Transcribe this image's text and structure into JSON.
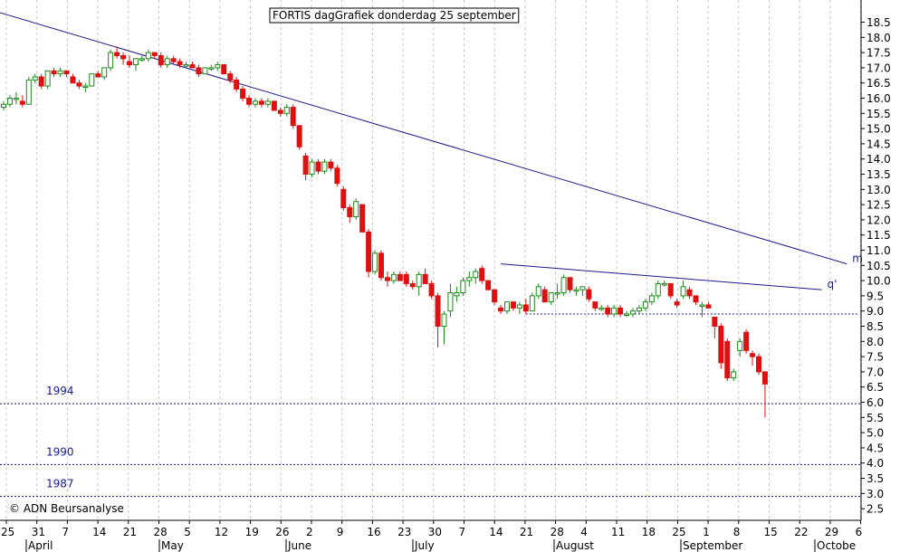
{
  "colors": {
    "grid": "#c8c8c8",
    "axis": "#000000",
    "up_candle": "#1a8a1a",
    "down_candle": "#dd1111",
    "trendline": "#1a1a8a",
    "annotation": "#1a1a9a"
  },
  "chart_data": {
    "type": "candlestick",
    "title": "FORTIS dagGrafiek donderdag 25 september",
    "copyright": "© ADN Beursanalyse",
    "y_axis": {
      "position": "right",
      "ylim": [
        2.0,
        18.7
      ],
      "ticks": [
        "2.5",
        "3.0",
        "3.5",
        "4.0",
        "4.5",
        "5.0",
        "5.5",
        "6.0",
        "6.5",
        "7.0",
        "7.5",
        "8.0",
        "8.5",
        "9.0",
        "9.5",
        "10.0",
        "10.5",
        "11.0",
        "11.5",
        "12.0",
        "12.5",
        "13.0",
        "13.5",
        "14.0",
        "14.5",
        "15.0",
        "15.5",
        "16.0",
        "16.5",
        "17.0",
        "17.5",
        "18.0",
        "18.5"
      ]
    },
    "x_axis": {
      "day_labels": [
        "25",
        "31",
        "7",
        "14",
        "21",
        "28",
        "5",
        "12",
        "19",
        "26",
        "2",
        "9",
        "16",
        "23",
        "30",
        "7",
        "14",
        "21",
        "28",
        "4",
        "11",
        "18",
        "25",
        "1",
        "8",
        "15",
        "22",
        "29",
        "6"
      ],
      "month_labels": [
        "April",
        "May",
        "June",
        "July",
        "August",
        "September",
        "Octobe"
      ],
      "grid": "vertical dashed"
    },
    "candles": [
      {
        "o": 15.7,
        "h": 15.9,
        "l": 15.6,
        "c": 15.8
      },
      {
        "o": 15.8,
        "h": 16.1,
        "l": 15.7,
        "c": 16.0
      },
      {
        "o": 16.0,
        "h": 16.2,
        "l": 15.8,
        "c": 16.0
      },
      {
        "o": 15.9,
        "h": 16.1,
        "l": 15.7,
        "c": 15.8
      },
      {
        "o": 15.8,
        "h": 16.7,
        "l": 15.8,
        "c": 16.6
      },
      {
        "o": 16.6,
        "h": 16.8,
        "l": 16.5,
        "c": 16.7
      },
      {
        "o": 16.7,
        "h": 16.8,
        "l": 16.3,
        "c": 16.4
      },
      {
        "o": 16.4,
        "h": 16.9,
        "l": 16.3,
        "c": 16.9
      },
      {
        "o": 16.9,
        "h": 17.0,
        "l": 16.7,
        "c": 16.8
      },
      {
        "o": 16.8,
        "h": 17.0,
        "l": 16.7,
        "c": 16.9
      },
      {
        "o": 16.9,
        "h": 16.9,
        "l": 16.7,
        "c": 16.8
      },
      {
        "o": 16.7,
        "h": 16.8,
        "l": 16.5,
        "c": 16.5
      },
      {
        "o": 16.5,
        "h": 16.6,
        "l": 16.3,
        "c": 16.4
      },
      {
        "o": 16.4,
        "h": 16.5,
        "l": 16.2,
        "c": 16.4
      },
      {
        "o": 16.4,
        "h": 16.8,
        "l": 16.4,
        "c": 16.8
      },
      {
        "o": 16.8,
        "h": 16.9,
        "l": 16.7,
        "c": 16.7
      },
      {
        "o": 16.7,
        "h": 17.0,
        "l": 16.6,
        "c": 17.0
      },
      {
        "o": 17.0,
        "h": 17.6,
        "l": 16.9,
        "c": 17.5
      },
      {
        "o": 17.5,
        "h": 17.7,
        "l": 17.3,
        "c": 17.4
      },
      {
        "o": 17.4,
        "h": 17.5,
        "l": 17.1,
        "c": 17.3
      },
      {
        "o": 17.2,
        "h": 17.4,
        "l": 17.0,
        "c": 17.1
      },
      {
        "o": 17.1,
        "h": 17.3,
        "l": 16.9,
        "c": 17.3
      },
      {
        "o": 17.3,
        "h": 17.4,
        "l": 17.2,
        "c": 17.3
      },
      {
        "o": 17.3,
        "h": 17.6,
        "l": 17.2,
        "c": 17.5
      },
      {
        "o": 17.5,
        "h": 17.5,
        "l": 17.3,
        "c": 17.4
      },
      {
        "o": 17.4,
        "h": 17.5,
        "l": 17.0,
        "c": 17.1
      },
      {
        "o": 17.1,
        "h": 17.4,
        "l": 17.0,
        "c": 17.3
      },
      {
        "o": 17.3,
        "h": 17.4,
        "l": 17.1,
        "c": 17.2
      },
      {
        "o": 17.2,
        "h": 17.3,
        "l": 17.0,
        "c": 17.1
      },
      {
        "o": 17.1,
        "h": 17.2,
        "l": 17.0,
        "c": 17.1
      },
      {
        "o": 17.1,
        "h": 17.2,
        "l": 17.0,
        "c": 17.0
      },
      {
        "o": 17.0,
        "h": 17.1,
        "l": 16.7,
        "c": 16.8
      },
      {
        "o": 16.8,
        "h": 17.0,
        "l": 16.8,
        "c": 17.0
      },
      {
        "o": 17.0,
        "h": 17.1,
        "l": 16.9,
        "c": 17.0
      },
      {
        "o": 17.0,
        "h": 17.2,
        "l": 16.9,
        "c": 17.1
      },
      {
        "o": 17.1,
        "h": 17.1,
        "l": 16.8,
        "c": 16.8
      },
      {
        "o": 16.8,
        "h": 16.9,
        "l": 16.5,
        "c": 16.6
      },
      {
        "o": 16.6,
        "h": 16.7,
        "l": 16.2,
        "c": 16.3
      },
      {
        "o": 16.3,
        "h": 16.4,
        "l": 15.9,
        "c": 16.0
      },
      {
        "o": 16.0,
        "h": 16.1,
        "l": 15.7,
        "c": 15.8
      },
      {
        "o": 15.8,
        "h": 16.0,
        "l": 15.7,
        "c": 15.9
      },
      {
        "o": 15.9,
        "h": 16.0,
        "l": 15.7,
        "c": 15.8
      },
      {
        "o": 15.8,
        "h": 16.0,
        "l": 15.7,
        "c": 15.9
      },
      {
        "o": 15.9,
        "h": 15.9,
        "l": 15.6,
        "c": 15.6
      },
      {
        "o": 15.6,
        "h": 15.7,
        "l": 15.4,
        "c": 15.5
      },
      {
        "o": 15.5,
        "h": 15.8,
        "l": 15.4,
        "c": 15.7
      },
      {
        "o": 15.7,
        "h": 15.8,
        "l": 15.0,
        "c": 15.1
      },
      {
        "o": 15.1,
        "h": 15.1,
        "l": 14.3,
        "c": 14.4
      },
      {
        "o": 14.1,
        "h": 14.2,
        "l": 13.3,
        "c": 13.5
      },
      {
        "o": 13.5,
        "h": 14.0,
        "l": 13.4,
        "c": 13.9
      },
      {
        "o": 13.9,
        "h": 14.0,
        "l": 13.5,
        "c": 13.6
      },
      {
        "o": 13.6,
        "h": 14.0,
        "l": 13.5,
        "c": 13.9
      },
      {
        "o": 13.9,
        "h": 14.0,
        "l": 13.6,
        "c": 13.7
      },
      {
        "o": 13.7,
        "h": 13.8,
        "l": 13.1,
        "c": 13.2
      },
      {
        "o": 13.0,
        "h": 13.1,
        "l": 12.3,
        "c": 12.4
      },
      {
        "o": 12.4,
        "h": 12.5,
        "l": 11.9,
        "c": 12.1
      },
      {
        "o": 12.1,
        "h": 12.7,
        "l": 12.0,
        "c": 12.6
      },
      {
        "o": 12.5,
        "h": 12.5,
        "l": 11.6,
        "c": 11.6
      },
      {
        "o": 11.6,
        "h": 11.7,
        "l": 10.1,
        "c": 10.3
      },
      {
        "o": 10.3,
        "h": 11.0,
        "l": 10.2,
        "c": 10.9
      },
      {
        "o": 10.9,
        "h": 11.0,
        "l": 10.0,
        "c": 10.1
      },
      {
        "o": 10.1,
        "h": 10.3,
        "l": 9.8,
        "c": 10.0
      },
      {
        "o": 10.0,
        "h": 10.3,
        "l": 9.9,
        "c": 10.2
      },
      {
        "o": 10.2,
        "h": 10.3,
        "l": 10.0,
        "c": 10.0
      },
      {
        "o": 10.2,
        "h": 10.3,
        "l": 9.8,
        "c": 9.9
      },
      {
        "o": 9.9,
        "h": 10.0,
        "l": 9.7,
        "c": 9.8
      },
      {
        "o": 9.8,
        "h": 10.3,
        "l": 9.5,
        "c": 10.2
      },
      {
        "o": 10.2,
        "h": 10.4,
        "l": 9.9,
        "c": 9.9
      },
      {
        "o": 9.9,
        "h": 10.0,
        "l": 9.4,
        "c": 9.5
      },
      {
        "o": 9.5,
        "h": 9.6,
        "l": 7.8,
        "c": 8.5
      },
      {
        "o": 8.5,
        "h": 9.0,
        "l": 7.9,
        "c": 8.9
      },
      {
        "o": 9.0,
        "h": 9.9,
        "l": 8.8,
        "c": 9.6
      },
      {
        "o": 9.5,
        "h": 9.8,
        "l": 9.3,
        "c": 9.6
      },
      {
        "o": 9.6,
        "h": 10.1,
        "l": 9.5,
        "c": 10.0
      },
      {
        "o": 10.0,
        "h": 10.3,
        "l": 9.8,
        "c": 10.1
      },
      {
        "o": 10.1,
        "h": 10.4,
        "l": 9.9,
        "c": 10.3
      },
      {
        "o": 10.4,
        "h": 10.5,
        "l": 9.9,
        "c": 10.0
      },
      {
        "o": 10.0,
        "h": 10.0,
        "l": 9.7,
        "c": 9.7
      },
      {
        "o": 9.7,
        "h": 9.7,
        "l": 9.2,
        "c": 9.3
      },
      {
        "o": 9.1,
        "h": 9.2,
        "l": 8.9,
        "c": 9.0
      },
      {
        "o": 9.0,
        "h": 9.3,
        "l": 8.9,
        "c": 9.3
      },
      {
        "o": 9.3,
        "h": 9.3,
        "l": 9.0,
        "c": 9.1
      },
      {
        "o": 9.1,
        "h": 9.3,
        "l": 8.9,
        "c": 9.2
      },
      {
        "o": 9.2,
        "h": 9.4,
        "l": 8.9,
        "c": 9.0
      },
      {
        "o": 9.0,
        "h": 9.6,
        "l": 9.0,
        "c": 9.5
      },
      {
        "o": 9.5,
        "h": 9.9,
        "l": 9.4,
        "c": 9.8
      },
      {
        "o": 9.7,
        "h": 9.8,
        "l": 9.3,
        "c": 9.3
      },
      {
        "o": 9.3,
        "h": 9.6,
        "l": 9.2,
        "c": 9.6
      },
      {
        "o": 9.6,
        "h": 9.9,
        "l": 9.4,
        "c": 9.6
      },
      {
        "o": 9.6,
        "h": 10.2,
        "l": 9.5,
        "c": 10.1
      },
      {
        "o": 10.1,
        "h": 10.1,
        "l": 9.6,
        "c": 9.7
      },
      {
        "o": 9.7,
        "h": 9.8,
        "l": 9.5,
        "c": 9.7
      },
      {
        "o": 9.7,
        "h": 9.8,
        "l": 9.5,
        "c": 9.8
      },
      {
        "o": 9.7,
        "h": 9.8,
        "l": 9.3,
        "c": 9.4
      },
      {
        "o": 9.3,
        "h": 9.3,
        "l": 9.0,
        "c": 9.1
      },
      {
        "o": 9.1,
        "h": 9.2,
        "l": 9.0,
        "c": 9.1
      },
      {
        "o": 9.1,
        "h": 9.2,
        "l": 8.8,
        "c": 8.9
      },
      {
        "o": 8.9,
        "h": 9.2,
        "l": 8.8,
        "c": 9.1
      },
      {
        "o": 9.1,
        "h": 9.2,
        "l": 8.8,
        "c": 8.9
      },
      {
        "o": 8.9,
        "h": 9.0,
        "l": 8.8,
        "c": 8.9
      },
      {
        "o": 8.9,
        "h": 9.1,
        "l": 8.8,
        "c": 9.0
      },
      {
        "o": 9.0,
        "h": 9.2,
        "l": 8.9,
        "c": 9.1
      },
      {
        "o": 9.1,
        "h": 9.4,
        "l": 9.0,
        "c": 9.3
      },
      {
        "o": 9.3,
        "h": 9.6,
        "l": 9.2,
        "c": 9.5
      },
      {
        "o": 9.5,
        "h": 10.0,
        "l": 9.4,
        "c": 9.9
      },
      {
        "o": 9.9,
        "h": 10.0,
        "l": 9.8,
        "c": 9.9
      },
      {
        "o": 9.9,
        "h": 9.9,
        "l": 9.4,
        "c": 9.5
      },
      {
        "o": 9.3,
        "h": 9.4,
        "l": 9.1,
        "c": 9.2
      },
      {
        "o": 9.5,
        "h": 10.0,
        "l": 9.4,
        "c": 9.8
      },
      {
        "o": 9.7,
        "h": 9.8,
        "l": 9.4,
        "c": 9.5
      },
      {
        "o": 9.5,
        "h": 9.5,
        "l": 9.2,
        "c": 9.3
      },
      {
        "o": 9.2,
        "h": 9.3,
        "l": 8.8,
        "c": 9.2
      },
      {
        "o": 9.2,
        "h": 9.3,
        "l": 9.1,
        "c": 9.1
      },
      {
        "o": 8.8,
        "h": 8.8,
        "l": 8.1,
        "c": 8.5
      },
      {
        "o": 8.5,
        "h": 8.6,
        "l": 7.1,
        "c": 7.3
      },
      {
        "o": 8.0,
        "h": 8.1,
        "l": 6.7,
        "c": 6.8
      },
      {
        "o": 6.8,
        "h": 7.1,
        "l": 6.7,
        "c": 7.0
      },
      {
        "o": 7.7,
        "h": 8.1,
        "l": 7.5,
        "c": 8.0
      },
      {
        "o": 8.3,
        "h": 8.4,
        "l": 7.6,
        "c": 7.7
      },
      {
        "o": 7.6,
        "h": 7.7,
        "l": 7.2,
        "c": 7.5
      },
      {
        "o": 7.5,
        "h": 7.6,
        "l": 6.9,
        "c": 7.0
      },
      {
        "o": 7.0,
        "h": 7.0,
        "l": 5.5,
        "c": 6.6
      }
    ],
    "trendlines": [
      {
        "label": "m",
        "style": "solid",
        "x0": -2.0,
        "y0": 18.9,
        "x1": 134,
        "y1": 10.55
      },
      {
        "label": "q'",
        "style": "solid",
        "x0": 79,
        "y0": 10.55,
        "x1": 130,
        "y1": 9.7
      },
      {
        "label": "",
        "style": "dashed",
        "x0": 83,
        "y0": 8.9,
        "x1": 136,
        "y1": 8.9
      }
    ],
    "support_lines": [
      {
        "label": "1994",
        "value": 5.95
      },
      {
        "label": "1990",
        "value": 3.95
      },
      {
        "label": "1987",
        "value": 2.9
      }
    ]
  }
}
